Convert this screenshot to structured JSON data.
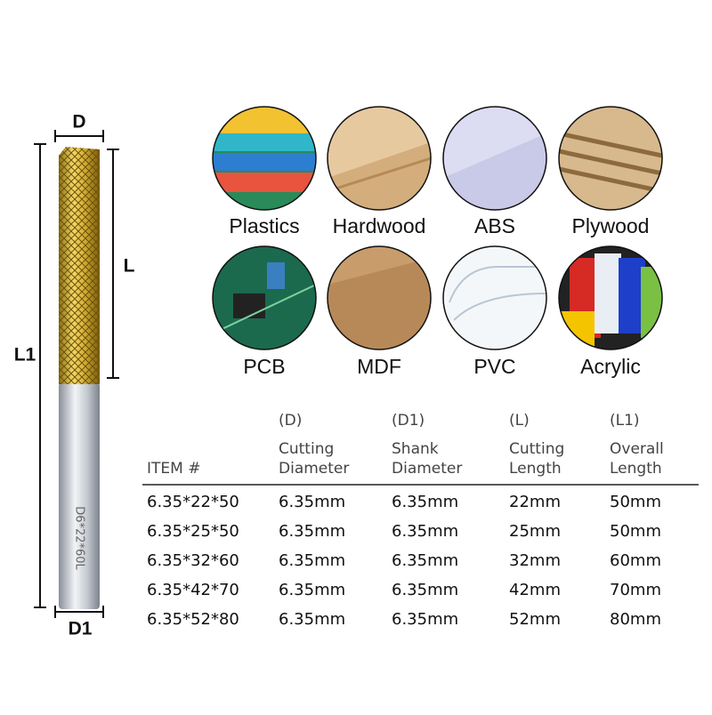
{
  "dimensions": {
    "d": "D",
    "l": "L",
    "l1": "L1",
    "d1": "D1",
    "engraving": "D6*22*60L"
  },
  "materials": [
    "Plastics",
    "Hardwood",
    "ABS",
    "Plywood",
    "PCB",
    "MDF",
    "PVC",
    "Acrylic"
  ],
  "table": {
    "item_header": "ITEM #",
    "columns": [
      {
        "code": "(D)",
        "line1": "Cutting",
        "line2": "Diameter"
      },
      {
        "code": "(D1)",
        "line1": "Shank",
        "line2": "Diameter"
      },
      {
        "code": "(L)",
        "line1": "Cutting",
        "line2": "Length"
      },
      {
        "code": "(L1)",
        "line1": "Overall",
        "line2": "Length"
      }
    ],
    "rows": [
      [
        "6.35*22*50",
        "6.35mm",
        "6.35mm",
        "22mm",
        "50mm"
      ],
      [
        "6.35*25*50",
        "6.35mm",
        "6.35mm",
        "25mm",
        "50mm"
      ],
      [
        "6.35*32*60",
        "6.35mm",
        "6.35mm",
        "32mm",
        "60mm"
      ],
      [
        "6.35*42*70",
        "6.35mm",
        "6.35mm",
        "42mm",
        "70mm"
      ],
      [
        "6.35*52*80",
        "6.35mm",
        "6.35mm",
        "52mm",
        "80mm"
      ]
    ]
  }
}
